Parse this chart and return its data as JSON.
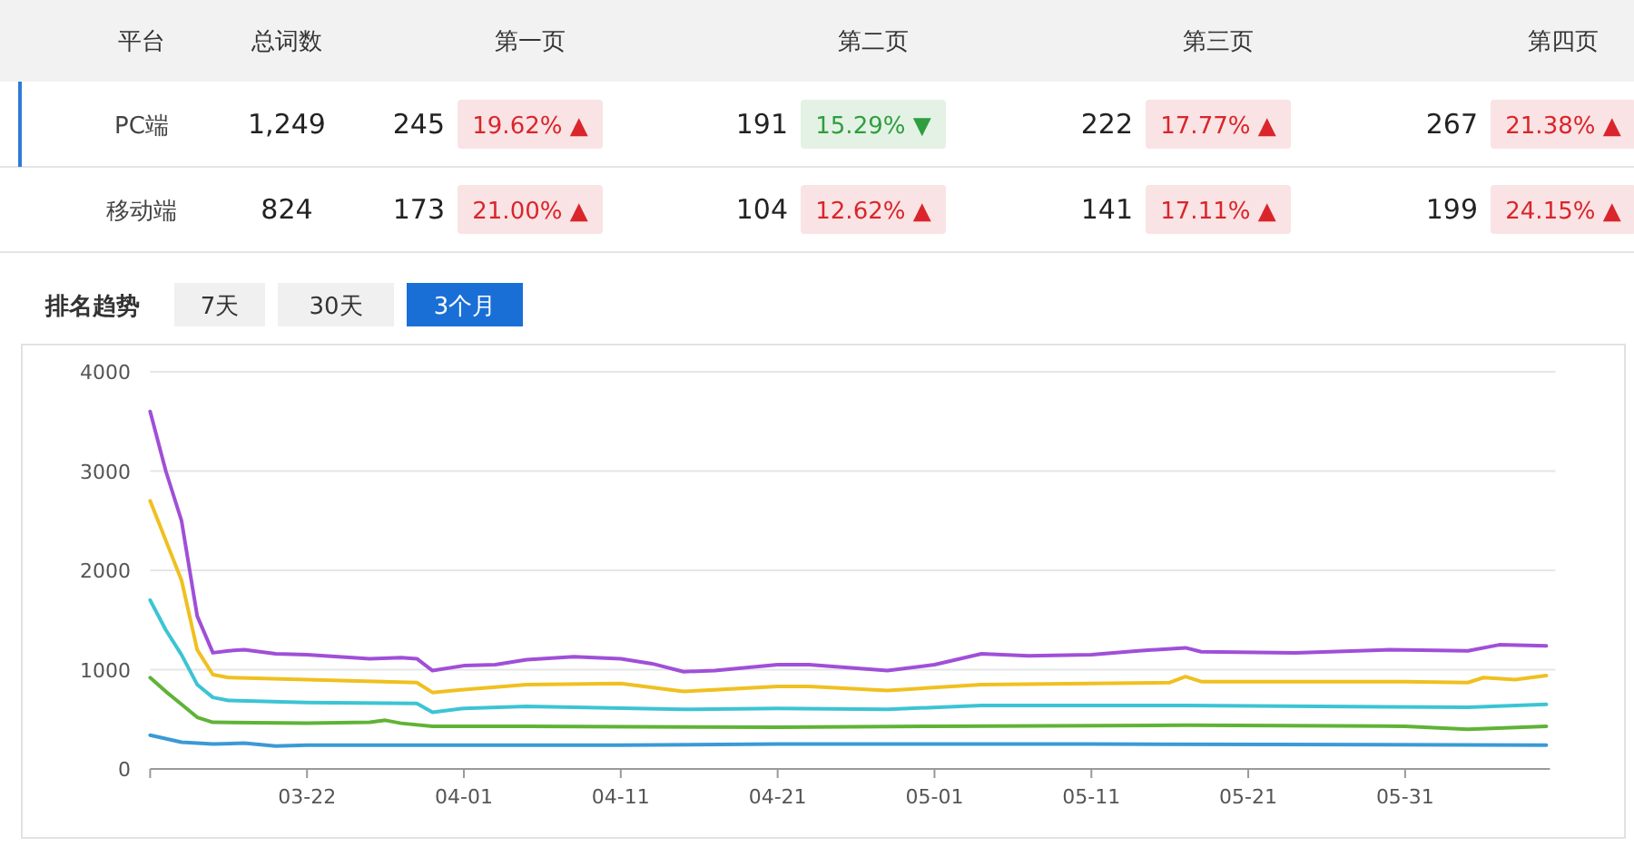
{
  "chart_data": [
    {
      "type": "other",
      "ylabel": "平台",
      "categories": [
        "总词数",
        "第一页",
        "第二页",
        "第三页",
        "第四页"
      ],
      "y_categories": [
        "PC端",
        "移动端"
      ],
      "cell_labels": [
        [
          "1,249",
          "245",
          "19.62% ▲",
          "191",
          "15.29% ▼",
          "222",
          "17.77% ▲",
          "267",
          "21.38% ▲"
        ],
        [
          "824",
          "173",
          "21.00% ▲",
          "104",
          "12.62% ▲",
          "141",
          "17.11% ▲",
          "199",
          "24.15% ▲"
        ]
      ],
      "colors": [
        [
          null,
          null,
          "#d9252b",
          null,
          "#2e9e3e",
          null,
          "#d9252b",
          null,
          "#d9252b"
        ],
        [
          null,
          null,
          "#d9252b",
          null,
          "#d9252b",
          null,
          "#d9252b",
          null,
          "#d9252b"
        ]
      ]
    },
    {
      "type": "line",
      "title": "排名趋势",
      "annotations": [
        "7天",
        "30天",
        "3个月"
      ],
      "xlim": [
        "--03-12",
        "--06-09"
      ],
      "xticks": [
        {
          "value": "--03-22",
          "label": "03-22"
        },
        {
          "value": "--04-01",
          "label": "04-01"
        },
        {
          "value": "--04-11",
          "label": "04-11"
        },
        {
          "value": "--04-21",
          "label": "04-21"
        },
        {
          "value": "--05-01",
          "label": "05-01"
        },
        {
          "value": "--05-11",
          "label": "05-11"
        },
        {
          "value": "--05-21",
          "label": "05-21"
        },
        {
          "value": "--05-31",
          "label": "05-31"
        }
      ],
      "ylim": [
        0,
        4000
      ],
      "yticks": [
        0,
        1000,
        2000,
        3000,
        4000
      ],
      "grid": "y",
      "series": [
        {
          "color": "#a04fd8",
          "x": [
            "--03-12",
            "--03-13",
            "--03-14",
            "--03-15",
            "--03-16",
            "--03-17",
            "--03-18",
            "--03-20",
            "--03-22",
            "--03-24",
            "--03-26",
            "--03-28",
            "--03-29",
            "--03-30",
            "--04-01",
            "--04-03",
            "--04-05",
            "--04-08",
            "--04-11",
            "--04-13",
            "--04-15",
            "--04-17",
            "--04-21",
            "--04-23",
            "--04-28",
            "--05-01",
            "--05-04",
            "--05-07",
            "--05-11",
            "--05-14",
            "--05-17",
            "--05-18",
            "--05-24",
            "--05-30",
            "--06-04",
            "--06-06",
            "--06-09"
          ],
          "values": [
            3600,
            3000,
            2500,
            1540,
            1170,
            1190,
            1200,
            1160,
            1150,
            1130,
            1110,
            1120,
            1110,
            990,
            1040,
            1050,
            1100,
            1130,
            1110,
            1060,
            980,
            990,
            1050,
            1050,
            990,
            1050,
            1160,
            1140,
            1150,
            1190,
            1220,
            1180,
            1170,
            1200,
            1190,
            1250,
            1240
          ]
        },
        {
          "color": "#f0c020",
          "x": [
            "--03-12",
            "--03-13",
            "--03-14",
            "--03-15",
            "--03-16",
            "--03-17",
            "--03-22",
            "--03-29",
            "--03-30",
            "--04-01",
            "--04-05",
            "--04-11",
            "--04-15",
            "--04-21",
            "--04-23",
            "--04-28",
            "--05-04",
            "--05-16",
            "--05-17",
            "--05-18",
            "--05-31",
            "--06-04",
            "--06-05",
            "--06-07",
            "--06-09"
          ],
          "values": [
            2700,
            2300,
            1900,
            1200,
            950,
            920,
            900,
            870,
            770,
            800,
            850,
            860,
            780,
            830,
            830,
            790,
            850,
            870,
            930,
            880,
            880,
            870,
            920,
            900,
            940
          ]
        },
        {
          "color": "#3cc4d4",
          "x": [
            "--03-12",
            "--03-13",
            "--03-14",
            "--03-15",
            "--03-16",
            "--03-17",
            "--03-22",
            "--03-29",
            "--03-30",
            "--04-01",
            "--04-05",
            "--04-15",
            "--04-21",
            "--04-28",
            "--05-04",
            "--05-17",
            "--06-04",
            "--06-09"
          ],
          "values": [
            1700,
            1400,
            1150,
            850,
            720,
            690,
            670,
            660,
            570,
            610,
            630,
            600,
            610,
            600,
            640,
            640,
            620,
            650
          ]
        },
        {
          "color": "#5fb336",
          "x": [
            "--03-12",
            "--03-13",
            "--03-14",
            "--03-15",
            "--03-16",
            "--03-22",
            "--03-26",
            "--03-27",
            "--03-28",
            "--03-30",
            "--04-05",
            "--04-21",
            "--05-01",
            "--05-17",
            "--05-31",
            "--06-04",
            "--06-09"
          ],
          "values": [
            920,
            780,
            650,
            520,
            470,
            460,
            470,
            490,
            460,
            430,
            430,
            420,
            430,
            440,
            430,
            400,
            430
          ]
        },
        {
          "color": "#3a9ad6",
          "x": [
            "--03-12",
            "--03-14",
            "--03-16",
            "--03-18",
            "--03-20",
            "--03-22",
            "--04-11",
            "--04-21",
            "--05-11",
            "--06-09"
          ],
          "values": [
            340,
            270,
            250,
            260,
            230,
            240,
            240,
            250,
            250,
            240
          ]
        }
      ]
    }
  ]
}
